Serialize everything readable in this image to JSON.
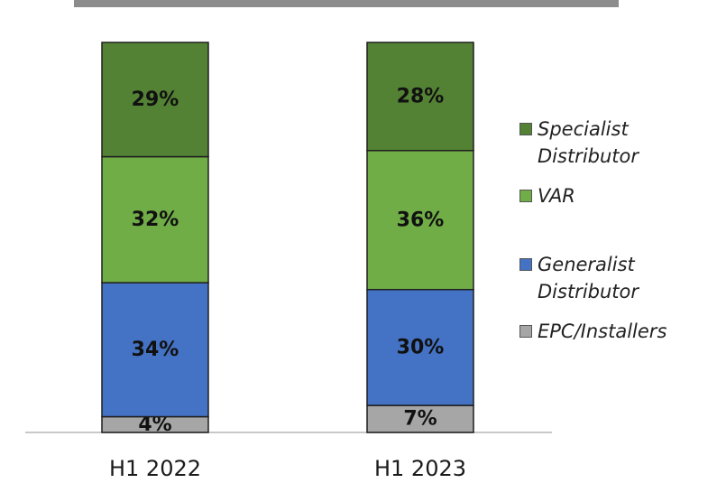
{
  "chart_data": {
    "type": "bar",
    "stacked": true,
    "categories": [
      "H1 2022",
      "H1 2023"
    ],
    "series": [
      {
        "name": "EPC/Installers",
        "values": [
          4,
          7
        ],
        "labels": [
          "4%",
          "7%"
        ],
        "color": "#a6a6a6"
      },
      {
        "name": "Generalist Distributor",
        "values": [
          34,
          30
        ],
        "labels": [
          "34%",
          "30%"
        ],
        "color": "#4472c4"
      },
      {
        "name": "VAR",
        "values": [
          32,
          36
        ],
        "labels": [
          "32%",
          "36%"
        ],
        "color": "#70ad47"
      },
      {
        "name": "Specialist Distributor",
        "values": [
          29,
          28
        ],
        "labels": [
          "29%",
          "28%"
        ],
        "color": "#548235"
      }
    ],
    "legend_position": "right",
    "grid": false,
    "title": "",
    "xlabel": "",
    "ylabel": ""
  },
  "legend": [
    {
      "label": "Specialist Distributor",
      "color": "#548235"
    },
    {
      "label": "VAR",
      "color": "#70ad47"
    },
    {
      "label": "Generalist Distributor",
      "color": "#4472c4"
    },
    {
      "label": "EPC/Installers",
      "color": "#a6a6a6"
    }
  ]
}
